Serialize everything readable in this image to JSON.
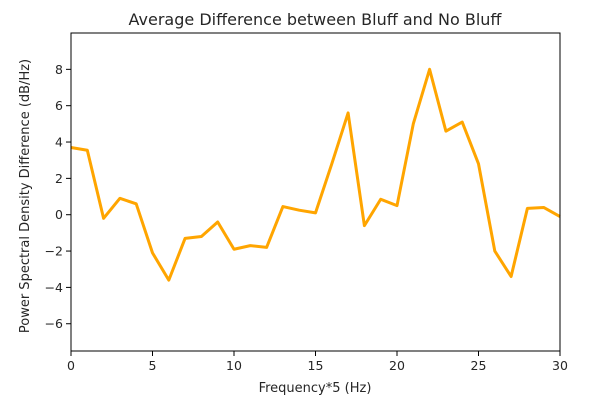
{
  "chart_data": {
    "type": "line",
    "title": "Average Difference between Bluff and No Bluff",
    "xlabel": "Frequency*5 (Hz)",
    "ylabel": "Power Spectral Density Difference (dB/Hz)",
    "xlim": [
      0,
      30
    ],
    "ylim": [
      -7.5,
      10
    ],
    "xticks": [
      0,
      5,
      10,
      15,
      20,
      25,
      30
    ],
    "yticks": [
      -6,
      -4,
      -2,
      0,
      2,
      4,
      6,
      8
    ],
    "ytick_labels": [
      "−6",
      "−4",
      "−2",
      "0",
      "2",
      "4",
      "6",
      "8"
    ],
    "grid": false,
    "legend": false,
    "series": [
      {
        "color": "#FFA500",
        "x": [
          0,
          1,
          2,
          3,
          4,
          5,
          6,
          7,
          8,
          9,
          10,
          11,
          12,
          13,
          14,
          15,
          16,
          17,
          18,
          19,
          20,
          21,
          22,
          23,
          24,
          25,
          26,
          27,
          28,
          29,
          30
        ],
        "y": [
          3.7,
          3.55,
          -0.2,
          0.9,
          0.6,
          -2.1,
          -3.6,
          -1.3,
          -1.2,
          -0.4,
          -1.9,
          -1.7,
          -1.8,
          0.45,
          0.25,
          0.1,
          2.8,
          5.6,
          -0.6,
          0.85,
          0.5,
          5.0,
          8.0,
          4.6,
          5.1,
          2.8,
          -2.0,
          -3.4,
          0.35,
          0.4,
          -0.1
        ]
      }
    ]
  }
}
